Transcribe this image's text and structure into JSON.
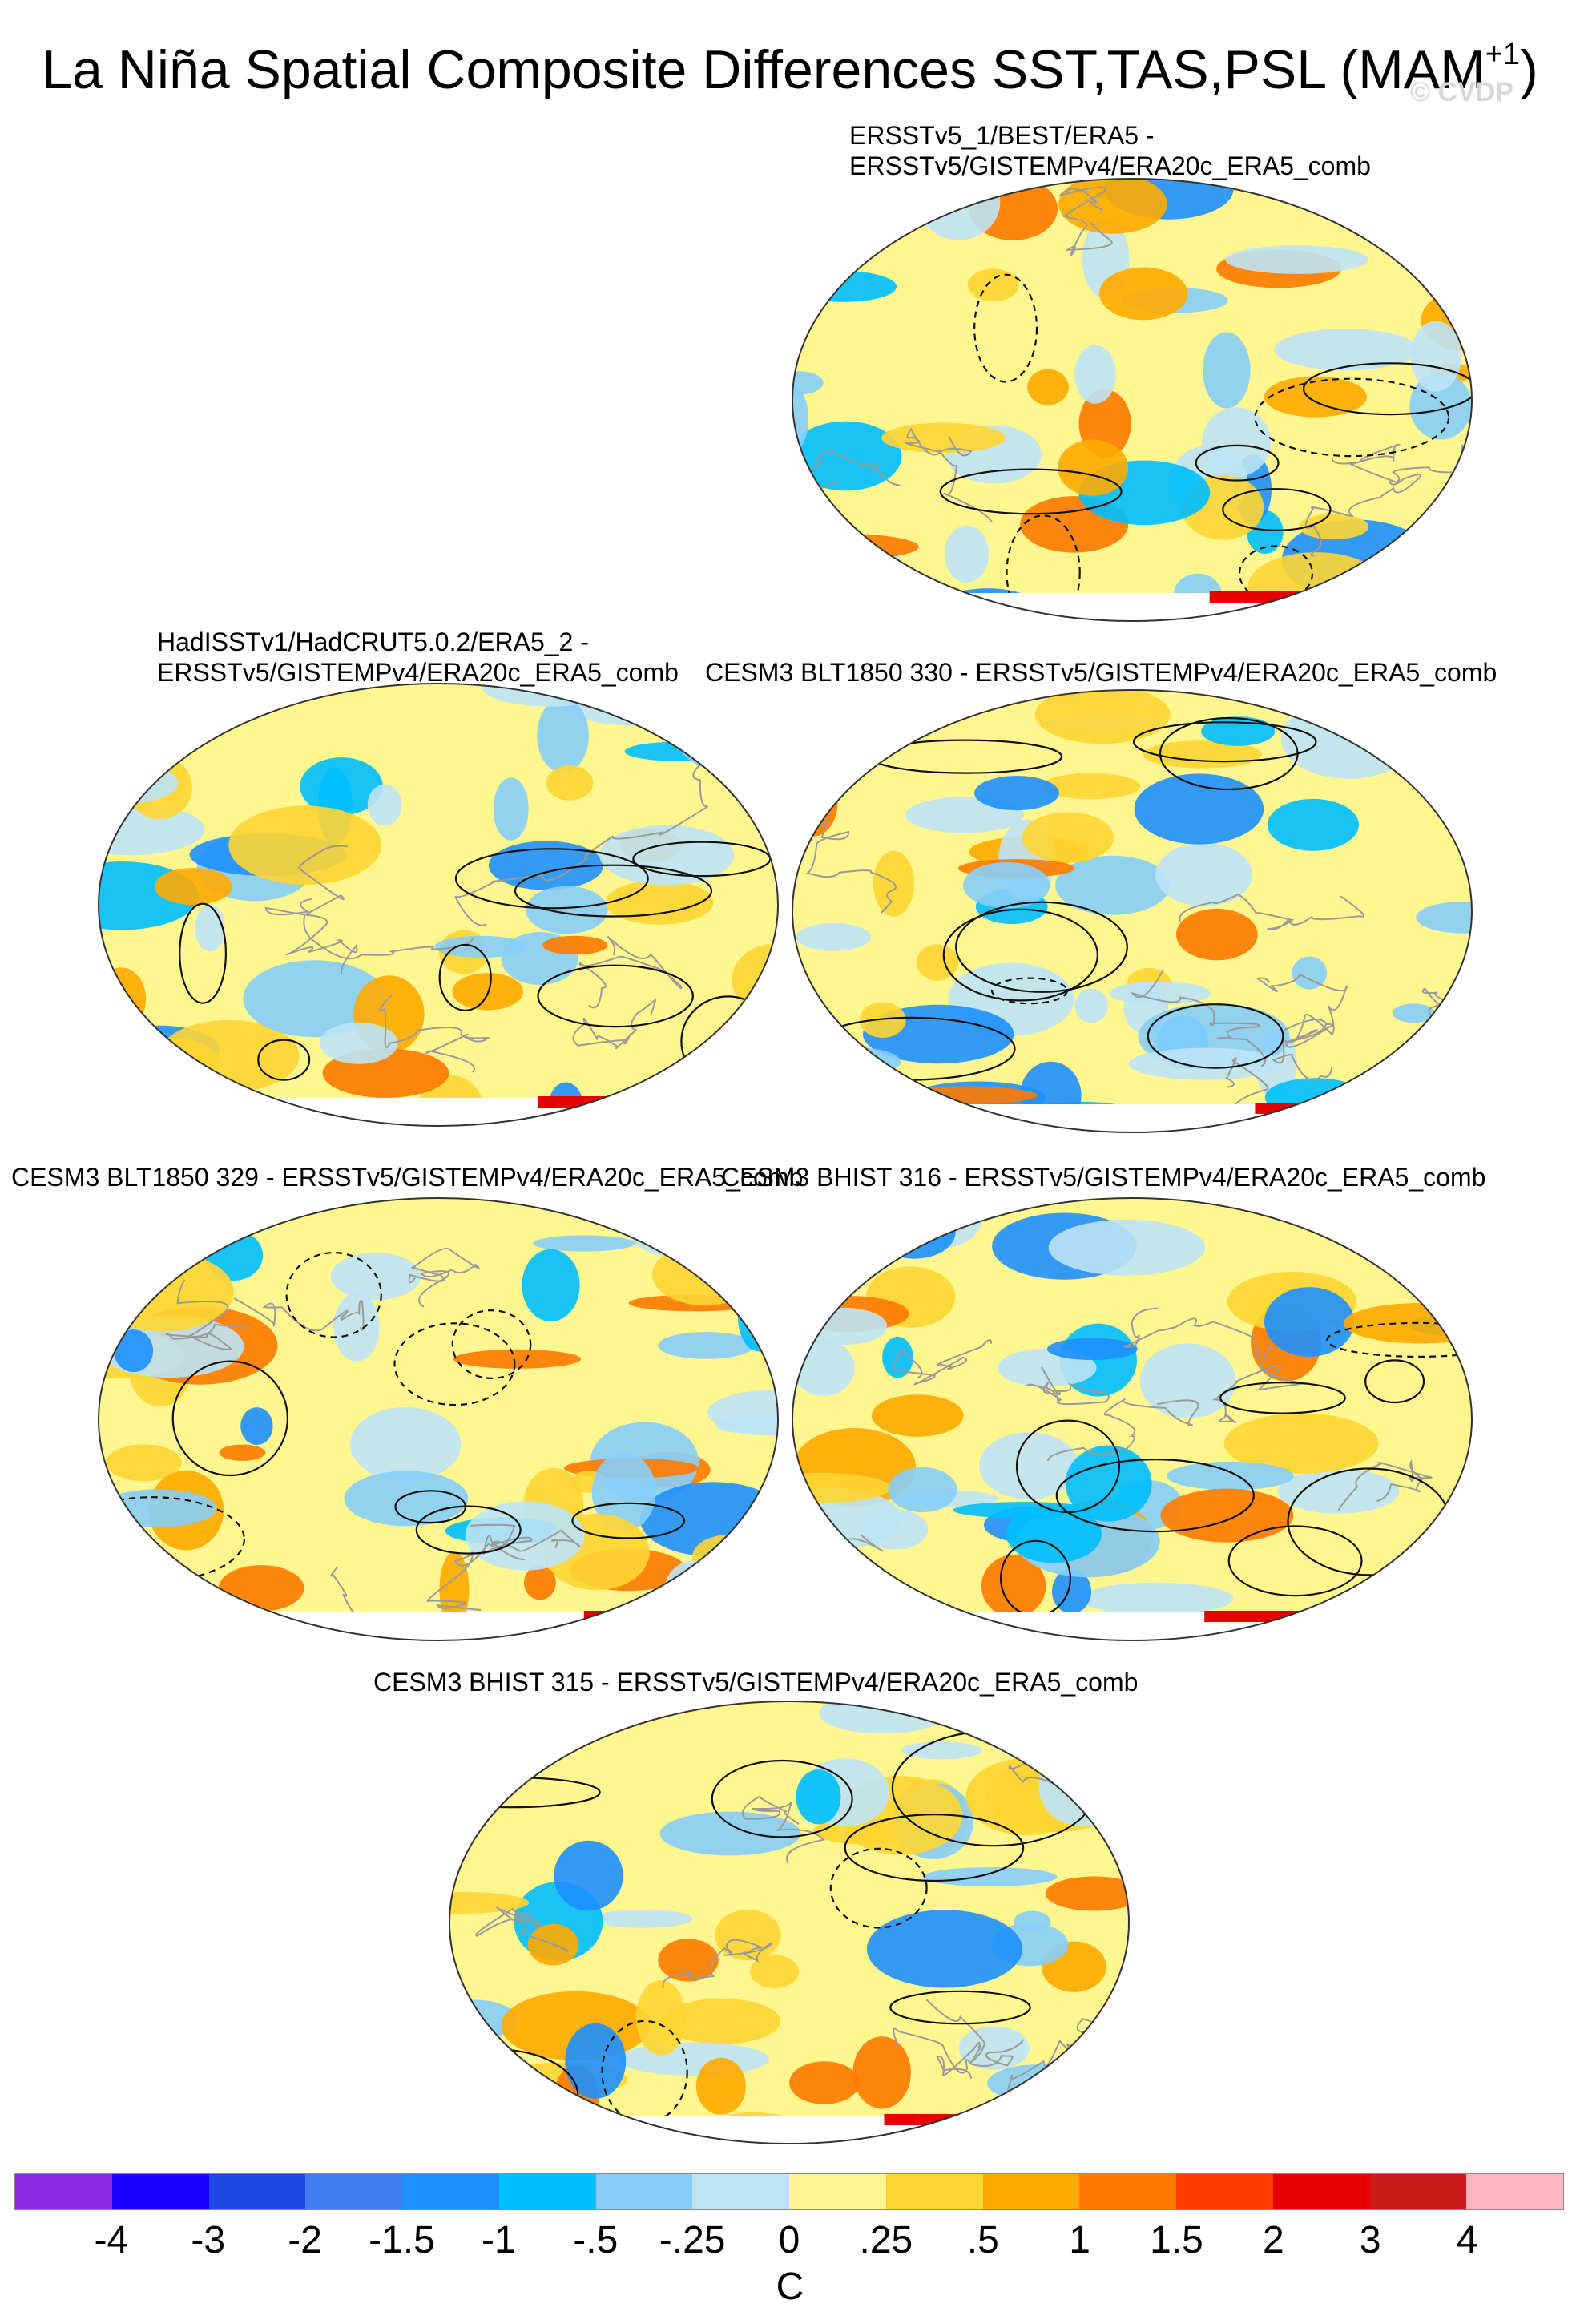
{
  "figure": {
    "title": "La Niña Spatial Composite Differences SST,TAS,PSL (MAM",
    "title_superscript": "+1",
    "title_suffix": ")",
    "watermark": "© CVDP"
  },
  "panels": [
    {
      "id": "p1",
      "title_lines": [
        "ERSSTv5_1/BEST/ERA5 -",
        "ERSSTv5/GISTEMPv4/ERA20c_ERA5_comb"
      ]
    },
    {
      "id": "p2",
      "title_lines": [
        "HadISSTv1/HadCRUT5.0.2/ERA5_2 -",
        "ERSSTv5/GISTEMPv4/ERA20c_ERA5_comb"
      ]
    },
    {
      "id": "p3",
      "title_lines": [
        "CESM3 BLT1850 330 - ERSSTv5/GISTEMPv4/ERA20c_ERA5_comb"
      ]
    },
    {
      "id": "p4",
      "title_lines": [
        "CESM3 BLT1850 329 - ERSSTv5/GISTEMPv4/ERA20c_ERA5_comb"
      ]
    },
    {
      "id": "p5",
      "title_lines": [
        "CESM3 BHIST 316 - ERSSTv5/GISTEMPv4/ERA20c_ERA5_comb"
      ]
    },
    {
      "id": "p6",
      "title_lines": [
        "CESM3 BHIST 315 - ERSSTv5/GISTEMPv4/ERA20c_ERA5_comb"
      ]
    }
  ],
  "colorbar": {
    "units": "C",
    "colors": [
      "#8a2be2",
      "#1a00ff",
      "#1f49e6",
      "#3f7fee",
      "#1e90ff",
      "#00bfff",
      "#87cefa",
      "#bde3f5",
      "#fff68f",
      "#ffd533",
      "#ffaa00",
      "#ff7a00",
      "#ff3c00",
      "#e60000",
      "#cc1a1a",
      "#ffb6c1"
    ],
    "ticks": [
      "-4",
      "-3",
      "-2",
      "-1.5",
      "-1",
      "-.5",
      "-.25",
      "0",
      ".25",
      ".5",
      "1",
      "1.5",
      "2",
      "3",
      "4"
    ]
  }
}
